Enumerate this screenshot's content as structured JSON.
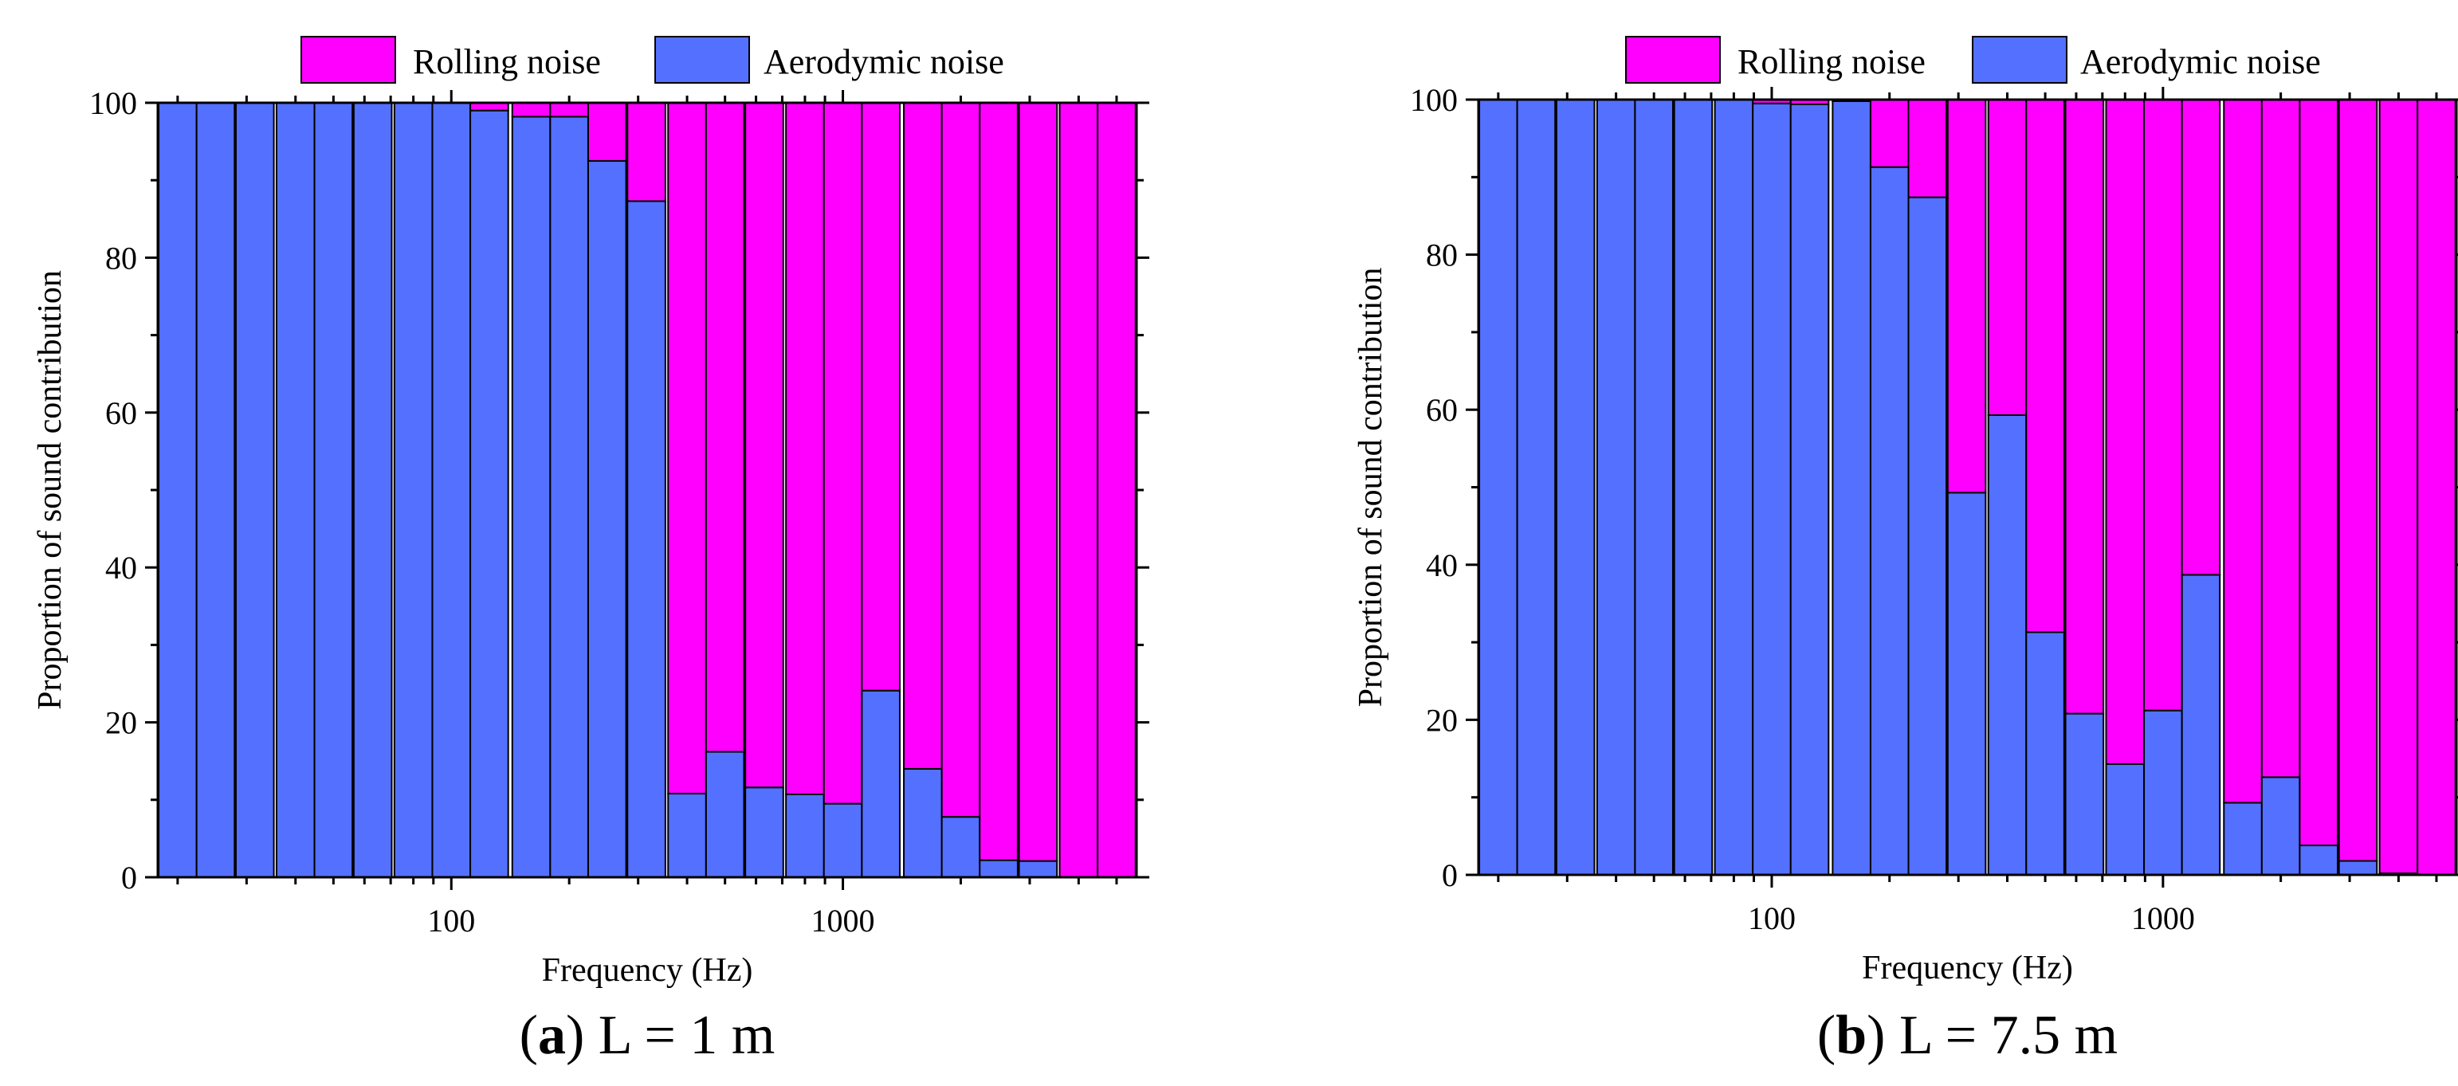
{
  "colors": {
    "rolling": "#ff00ff",
    "aerodynamic": "#5470ff",
    "axis": "#000000"
  },
  "chart_data": [
    {
      "type": "bar",
      "stacked": true,
      "percent_stacked": true,
      "caption_letter": "a",
      "caption_rest": ") L = 1 m",
      "xlabel": "Frequency (Hz)",
      "ylabel": "Proportion of sound contribution",
      "xscale": "log",
      "xlim": [
        17.8,
        5623
      ],
      "ylim": [
        0,
        100
      ],
      "yticks": [
        0,
        20,
        40,
        60,
        80,
        100
      ],
      "xticks": [
        100,
        1000
      ],
      "xtick_labels": [
        "100",
        "1000"
      ],
      "legend": {
        "placement": "top-center",
        "entries": [
          "Rolling noise",
          "Aerodymic noise"
        ]
      },
      "categories": [
        20,
        25,
        31.5,
        40,
        50,
        63,
        80,
        100,
        125,
        160,
        200,
        250,
        315,
        400,
        500,
        630,
        800,
        1000,
        1250,
        1600,
        2000,
        2500,
        3150,
        4000,
        5000
      ],
      "series": [
        {
          "name": "Aerodymic noise",
          "values": [
            100,
            100,
            100,
            100,
            100,
            100,
            100,
            100,
            99,
            98.2,
            98.2,
            92.5,
            87.3,
            10.8,
            16.2,
            11.6,
            10.7,
            9.5,
            24.1,
            14,
            7.8,
            2.2,
            2.1,
            0,
            0
          ]
        },
        {
          "name": "Rolling noise",
          "values": [
            0,
            0,
            0,
            0,
            0,
            0,
            0,
            0,
            1,
            1.8,
            1.8,
            7.5,
            12.7,
            89.2,
            83.8,
            88.4,
            89.3,
            90.5,
            75.9,
            86,
            92.2,
            97.8,
            97.9,
            100,
            100
          ]
        }
      ]
    },
    {
      "type": "bar",
      "stacked": true,
      "percent_stacked": true,
      "caption_letter": "b",
      "caption_rest": ") L = 7.5 m",
      "xlabel": "Frequency (Hz)",
      "ylabel": "Proportion of sound contribution",
      "xscale": "log",
      "xlim": [
        17.8,
        5623
      ],
      "ylim": [
        0,
        100
      ],
      "yticks": [
        0,
        20,
        40,
        60,
        80,
        100
      ],
      "xticks": [
        100,
        1000
      ],
      "xtick_labels": [
        "100",
        "1000"
      ],
      "legend": {
        "placement": "top-center",
        "entries": [
          "Rolling noise",
          "Aerodymic noise"
        ]
      },
      "categories": [
        20,
        25,
        31.5,
        40,
        50,
        63,
        80,
        100,
        125,
        160,
        200,
        250,
        315,
        400,
        500,
        630,
        800,
        1000,
        1250,
        1600,
        2000,
        2500,
        3150,
        4000,
        5000
      ],
      "series": [
        {
          "name": "Aerodymic noise",
          "values": [
            100,
            100,
            100,
            100,
            100,
            100,
            100,
            99.5,
            99.4,
            99.8,
            91.3,
            87.4,
            49.3,
            59.3,
            31.3,
            20.8,
            14.3,
            21.2,
            38.7,
            9.3,
            12.6,
            3.8,
            1.8,
            0.2,
            0
          ]
        },
        {
          "name": "Rolling noise",
          "values": [
            0,
            0,
            0,
            0,
            0,
            0,
            0,
            0.5,
            0.6,
            0.2,
            8.7,
            12.6,
            50.7,
            40.7,
            68.7,
            79.2,
            85.7,
            78.8,
            61.3,
            90.7,
            87.4,
            96.2,
            98.2,
            99.8,
            100
          ]
        }
      ]
    }
  ]
}
